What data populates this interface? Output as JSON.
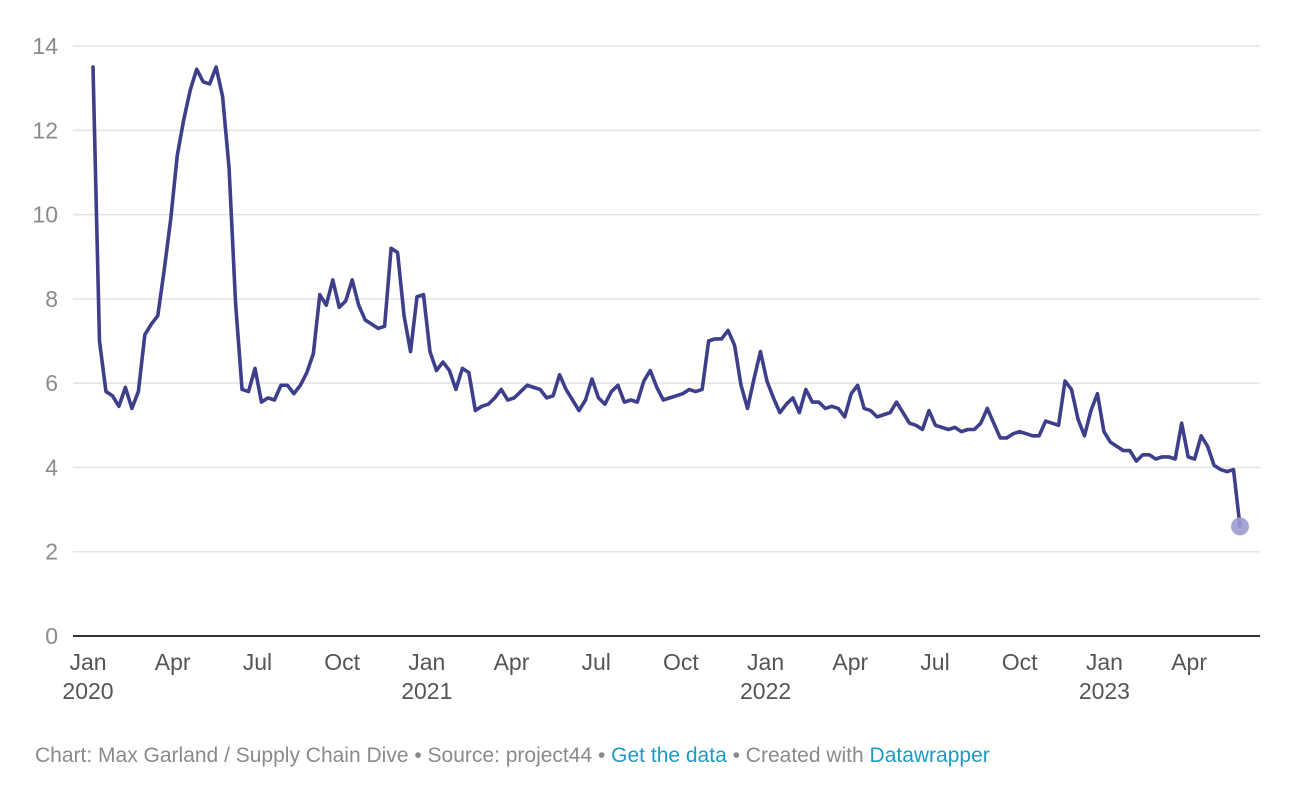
{
  "colors": {
    "line": "#3d3f8a",
    "endpoint": "#9b9cd2",
    "grid": "#e3e3e3",
    "axis": "#333333",
    "link": "#1f99c4"
  },
  "footer": {
    "chart_credit": "Chart: Max Garland / Supply Chain Dive",
    "sep1": " • ",
    "source": "Source: project44",
    "sep2": " • ",
    "data_link": "Get the data",
    "sep3": " • ",
    "created_with": "Created with ",
    "tool_link": "Datawrapper"
  },
  "chart_data": {
    "type": "line",
    "title": "",
    "xlabel": "",
    "ylabel": "",
    "ylim": [
      0,
      14
    ],
    "y_ticks": [
      "0",
      "2",
      "4",
      "6",
      "8",
      "10",
      "12",
      "14"
    ],
    "x_ticks": [
      {
        "label": "Jan",
        "year": "2020"
      },
      {
        "label": "Apr",
        "year": ""
      },
      {
        "label": "Jul",
        "year": ""
      },
      {
        "label": "Oct",
        "year": ""
      },
      {
        "label": "Jan",
        "year": "2021"
      },
      {
        "label": "Apr",
        "year": ""
      },
      {
        "label": "Jul",
        "year": ""
      },
      {
        "label": "Oct",
        "year": ""
      },
      {
        "label": "Jan",
        "year": "2022"
      },
      {
        "label": "Apr",
        "year": ""
      },
      {
        "label": "Jul",
        "year": ""
      },
      {
        "label": "Oct",
        "year": ""
      },
      {
        "label": "Jan",
        "year": "2023"
      },
      {
        "label": "Apr",
        "year": ""
      }
    ],
    "grid": true,
    "series": [
      {
        "values": [
          13.5,
          7.0,
          5.8,
          5.7,
          5.45,
          5.9,
          5.4,
          5.8,
          7.15,
          7.4,
          7.6,
          8.7,
          9.9,
          11.4,
          12.25,
          12.95,
          13.45,
          13.15,
          13.1,
          13.5,
          12.8,
          11.1,
          7.9,
          5.85,
          5.8,
          6.35,
          5.55,
          5.65,
          5.6,
          5.95,
          5.95,
          5.75,
          5.95,
          6.25,
          6.7,
          8.1,
          7.85,
          8.45,
          7.8,
          7.95,
          8.45,
          7.85,
          7.5,
          7.4,
          7.3,
          7.35,
          9.2,
          9.1,
          7.6,
          6.75,
          8.05,
          8.1,
          6.75,
          6.3,
          6.5,
          6.3,
          5.85,
          6.35,
          6.25,
          5.35,
          5.45,
          5.5,
          5.65,
          5.85,
          5.6,
          5.65,
          5.8,
          5.95,
          5.9,
          5.85,
          5.65,
          5.7,
          6.2,
          5.85,
          5.6,
          5.35,
          5.6,
          6.1,
          5.65,
          5.5,
          5.8,
          5.95,
          5.55,
          5.6,
          5.55,
          6.05,
          6.3,
          5.9,
          5.6,
          5.65,
          5.7,
          5.75,
          5.85,
          5.8,
          5.85,
          7.0,
          7.05,
          7.05,
          7.25,
          6.9,
          5.95,
          5.4,
          6.1,
          6.75,
          6.05,
          5.65,
          5.3,
          5.5,
          5.65,
          5.3,
          5.85,
          5.55,
          5.55,
          5.4,
          5.45,
          5.4,
          5.2,
          5.75,
          5.95,
          5.4,
          5.35,
          5.2,
          5.25,
          5.3,
          5.55,
          5.3,
          5.05,
          5.0,
          4.9,
          5.35,
          5.0,
          4.95,
          4.9,
          4.95,
          4.85,
          4.9,
          4.9,
          5.05,
          5.4,
          5.05,
          4.7,
          4.7,
          4.8,
          4.85,
          4.8,
          4.75,
          4.75,
          5.1,
          5.05,
          5.0,
          6.05,
          5.85,
          5.15,
          4.75,
          5.35,
          5.75,
          4.85,
          4.6,
          4.5,
          4.4,
          4.4,
          4.15,
          4.3,
          4.3,
          4.2,
          4.25,
          4.25,
          4.2,
          5.05,
          4.25,
          4.2,
          4.75,
          4.5,
          4.05,
          3.95,
          3.9,
          3.95,
          2.6
        ]
      }
    ]
  }
}
